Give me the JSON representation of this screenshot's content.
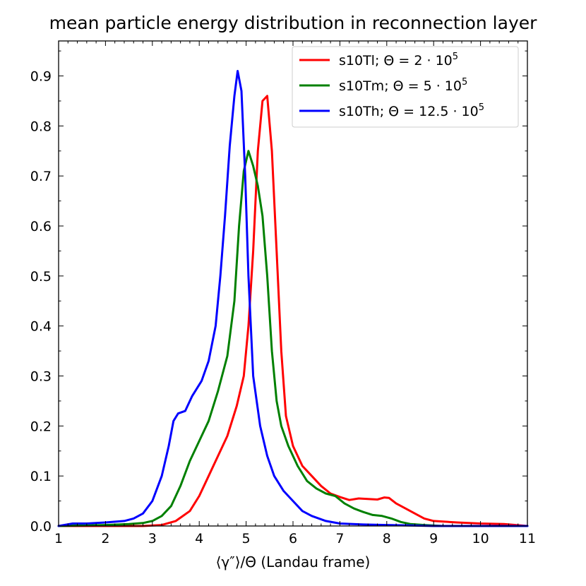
{
  "chart_data": {
    "type": "line",
    "title": "mean particle energy distribution in reconnection layer",
    "xlabel": "⟨γ″⟩/Θ (Landau frame)",
    "ylabel": "",
    "xlim": [
      1,
      11
    ],
    "ylim": [
      0,
      0.97
    ],
    "xticks": [
      1,
      2,
      3,
      4,
      5,
      6,
      7,
      8,
      9,
      10,
      11
    ],
    "yticks": [
      0.0,
      0.1,
      0.2,
      0.3,
      0.4,
      0.5,
      0.6,
      0.7,
      0.8,
      0.9
    ],
    "ytick_labels": [
      "0.0",
      "0.1",
      "0.2",
      "0.3",
      "0.4",
      "0.5",
      "0.6",
      "0.7",
      "0.8",
      "0.9"
    ],
    "legend_position": "top-right",
    "series": [
      {
        "name": "s10Tl",
        "legend": {
          "prefix": "s10Tl; Θ = 2 · 10",
          "sup": "5"
        },
        "color": "#ff0000",
        "points": [
          [
            1.0,
            0.0
          ],
          [
            2.0,
            0.0
          ],
          [
            2.8,
            0.0
          ],
          [
            3.2,
            0.002
          ],
          [
            3.5,
            0.01
          ],
          [
            3.8,
            0.03
          ],
          [
            4.0,
            0.06
          ],
          [
            4.2,
            0.1
          ],
          [
            4.4,
            0.14
          ],
          [
            4.6,
            0.18
          ],
          [
            4.8,
            0.24
          ],
          [
            4.95,
            0.3
          ],
          [
            5.05,
            0.4
          ],
          [
            5.15,
            0.55
          ],
          [
            5.25,
            0.75
          ],
          [
            5.35,
            0.85
          ],
          [
            5.45,
            0.86
          ],
          [
            5.55,
            0.75
          ],
          [
            5.65,
            0.55
          ],
          [
            5.75,
            0.35
          ],
          [
            5.85,
            0.22
          ],
          [
            6.0,
            0.16
          ],
          [
            6.2,
            0.12
          ],
          [
            6.4,
            0.1
          ],
          [
            6.6,
            0.08
          ],
          [
            6.8,
            0.065
          ],
          [
            7.0,
            0.058
          ],
          [
            7.2,
            0.052
          ],
          [
            7.4,
            0.055
          ],
          [
            7.6,
            0.054
          ],
          [
            7.8,
            0.053
          ],
          [
            7.95,
            0.057
          ],
          [
            8.05,
            0.056
          ],
          [
            8.2,
            0.045
          ],
          [
            8.4,
            0.035
          ],
          [
            8.6,
            0.025
          ],
          [
            8.8,
            0.015
          ],
          [
            9.0,
            0.01
          ],
          [
            9.5,
            0.007
          ],
          [
            10.0,
            0.005
          ],
          [
            10.5,
            0.004
          ],
          [
            11.0,
            0.0
          ]
        ]
      },
      {
        "name": "s10Tm",
        "legend": {
          "prefix": "s10Tm; Θ = 5 · 10",
          "sup": "5"
        },
        "color": "#008000",
        "points": [
          [
            1.0,
            0.0
          ],
          [
            2.0,
            0.002
          ],
          [
            2.5,
            0.004
          ],
          [
            2.8,
            0.006
          ],
          [
            3.0,
            0.01
          ],
          [
            3.2,
            0.02
          ],
          [
            3.4,
            0.04
          ],
          [
            3.6,
            0.08
          ],
          [
            3.8,
            0.13
          ],
          [
            4.0,
            0.17
          ],
          [
            4.2,
            0.21
          ],
          [
            4.4,
            0.27
          ],
          [
            4.6,
            0.34
          ],
          [
            4.75,
            0.45
          ],
          [
            4.85,
            0.6
          ],
          [
            4.95,
            0.71
          ],
          [
            5.05,
            0.75
          ],
          [
            5.15,
            0.72
          ],
          [
            5.25,
            0.68
          ],
          [
            5.35,
            0.62
          ],
          [
            5.45,
            0.5
          ],
          [
            5.55,
            0.35
          ],
          [
            5.65,
            0.25
          ],
          [
            5.75,
            0.2
          ],
          [
            5.9,
            0.16
          ],
          [
            6.1,
            0.12
          ],
          [
            6.3,
            0.09
          ],
          [
            6.5,
            0.075
          ],
          [
            6.7,
            0.065
          ],
          [
            6.9,
            0.06
          ],
          [
            7.1,
            0.045
          ],
          [
            7.3,
            0.035
          ],
          [
            7.5,
            0.028
          ],
          [
            7.7,
            0.022
          ],
          [
            7.9,
            0.02
          ],
          [
            8.1,
            0.015
          ],
          [
            8.3,
            0.008
          ],
          [
            8.5,
            0.004
          ],
          [
            8.8,
            0.002
          ],
          [
            9.2,
            0.0
          ],
          [
            11.0,
            0.0
          ]
        ]
      },
      {
        "name": "s10Th",
        "legend": {
          "prefix": "s10Th; Θ = 12.5 · 10",
          "sup": "5"
        },
        "color": "#0000ff",
        "points": [
          [
            1.0,
            0.0
          ],
          [
            1.3,
            0.005
          ],
          [
            1.6,
            0.005
          ],
          [
            2.0,
            0.007
          ],
          [
            2.4,
            0.01
          ],
          [
            2.6,
            0.015
          ],
          [
            2.8,
            0.025
          ],
          [
            3.0,
            0.05
          ],
          [
            3.2,
            0.1
          ],
          [
            3.35,
            0.16
          ],
          [
            3.45,
            0.21
          ],
          [
            3.55,
            0.225
          ],
          [
            3.7,
            0.23
          ],
          [
            3.85,
            0.26
          ],
          [
            4.05,
            0.29
          ],
          [
            4.2,
            0.33
          ],
          [
            4.35,
            0.4
          ],
          [
            4.45,
            0.5
          ],
          [
            4.55,
            0.62
          ],
          [
            4.65,
            0.76
          ],
          [
            4.75,
            0.86
          ],
          [
            4.82,
            0.91
          ],
          [
            4.9,
            0.87
          ],
          [
            4.98,
            0.7
          ],
          [
            5.05,
            0.5
          ],
          [
            5.15,
            0.3
          ],
          [
            5.3,
            0.2
          ],
          [
            5.45,
            0.14
          ],
          [
            5.6,
            0.1
          ],
          [
            5.8,
            0.07
          ],
          [
            6.0,
            0.05
          ],
          [
            6.2,
            0.03
          ],
          [
            6.4,
            0.02
          ],
          [
            6.7,
            0.01
          ],
          [
            7.0,
            0.005
          ],
          [
            7.5,
            0.003
          ],
          [
            8.0,
            0.002
          ],
          [
            8.5,
            0.001
          ],
          [
            9.0,
            0.0
          ],
          [
            11.0,
            0.0
          ]
        ]
      }
    ]
  }
}
